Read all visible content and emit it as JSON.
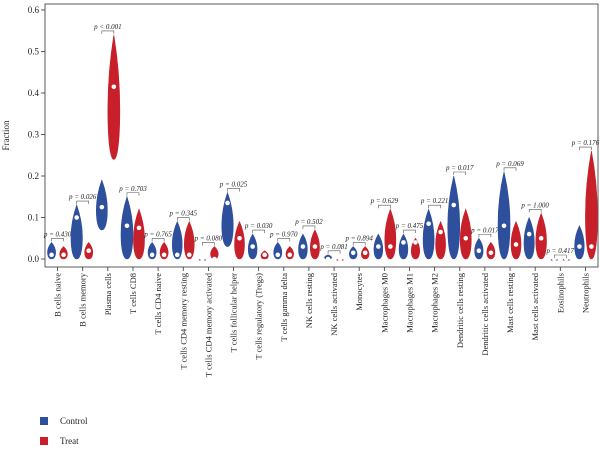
{
  "chart_data": {
    "type": "violin",
    "ylabel": "Fraction",
    "ylim": [
      0,
      0.6
    ],
    "yticks": [
      "0.0",
      "0.1",
      "0.2",
      "0.3",
      "0.4",
      "0.5",
      "0.6"
    ],
    "categories": [
      "B cells naive",
      "B cells memory",
      "Plasma cells",
      "T cells CD8",
      "T cells CD4 naive",
      "T cells CD4 memory resting",
      "T cells CD4 memory activated",
      "T cells follicular helper",
      "T cells regulatory (Tregs)",
      "T cells gamma delta",
      "NK cells resting",
      "NK cells activated",
      "Monocytes",
      "Macrophages M0",
      "Macrophages M1",
      "Macrophages M2",
      "Dendritic cells resting",
      "Dendritic cells activated",
      "Mast cells resting",
      "Mast cells activated",
      "Eosinophils",
      "Neutrophils"
    ],
    "pvalues": [
      "p = 0.430",
      "p = 0.026",
      "p < 0.001",
      "p = 0.703",
      "p = 0.765",
      "p = 0.345",
      "p = 0.080",
      "p = 0.025",
      "p = 0.030",
      "p = 0.970",
      "p = 0.502",
      "p = 0.081",
      "p = 0.894",
      "p = 0.629",
      "p = 0.475",
      "p = 0.221",
      "p = 0.017",
      "p = 0.017",
      "p = 0.069",
      "p = 1.000",
      "p = 0.417",
      "p = 0.176"
    ],
    "series": [
      {
        "name": "Control",
        "color": "#2e4f9b",
        "min": [
          0.0,
          0.0,
          0.07,
          0.0,
          0.0,
          0.0,
          0.0,
          0.03,
          0.0,
          0.0,
          0.0,
          0.0,
          0.0,
          0.0,
          0.0,
          0.0,
          0.0,
          0.0,
          0.0,
          0.0,
          0.0,
          0.0
        ],
        "max": [
          0.04,
          0.13,
          0.19,
          0.15,
          0.04,
          0.09,
          0.0,
          0.16,
          0.06,
          0.04,
          0.06,
          0.01,
          0.03,
          0.06,
          0.06,
          0.12,
          0.2,
          0.05,
          0.21,
          0.1,
          0.0,
          0.08
        ],
        "median": [
          0.01,
          0.1,
          0.125,
          0.08,
          0.01,
          0.01,
          0.0,
          0.135,
          0.03,
          0.01,
          0.03,
          0.0,
          0.015,
          0.03,
          0.04,
          0.085,
          0.13,
          0.02,
          0.08,
          0.06,
          0.0,
          0.03
        ]
      },
      {
        "name": "Treat",
        "color": "#c8202a",
        "min": [
          0.0,
          0.0,
          0.24,
          0.0,
          0.0,
          0.0,
          0.0,
          0.0,
          0.0,
          0.0,
          0.0,
          0.0,
          0.0,
          0.0,
          0.0,
          0.0,
          0.0,
          0.0,
          0.0,
          0.0,
          0.0,
          0.0
        ],
        "max": [
          0.03,
          0.04,
          0.54,
          0.12,
          0.04,
          0.09,
          0.03,
          0.09,
          0.02,
          0.03,
          0.07,
          0.0,
          0.03,
          0.12,
          0.05,
          0.09,
          0.12,
          0.04,
          0.09,
          0.11,
          0.0,
          0.26
        ],
        "median": [
          0.01,
          0.02,
          0.415,
          0.075,
          0.01,
          0.01,
          0.0,
          0.05,
          0.01,
          0.01,
          0.03,
          0.0,
          0.015,
          0.03,
          0.04,
          0.065,
          0.05,
          0.015,
          0.035,
          0.05,
          0.0,
          0.03
        ]
      }
    ],
    "legend": {
      "placement": "bottom-left",
      "entries": [
        "Control",
        "Treat"
      ]
    }
  }
}
